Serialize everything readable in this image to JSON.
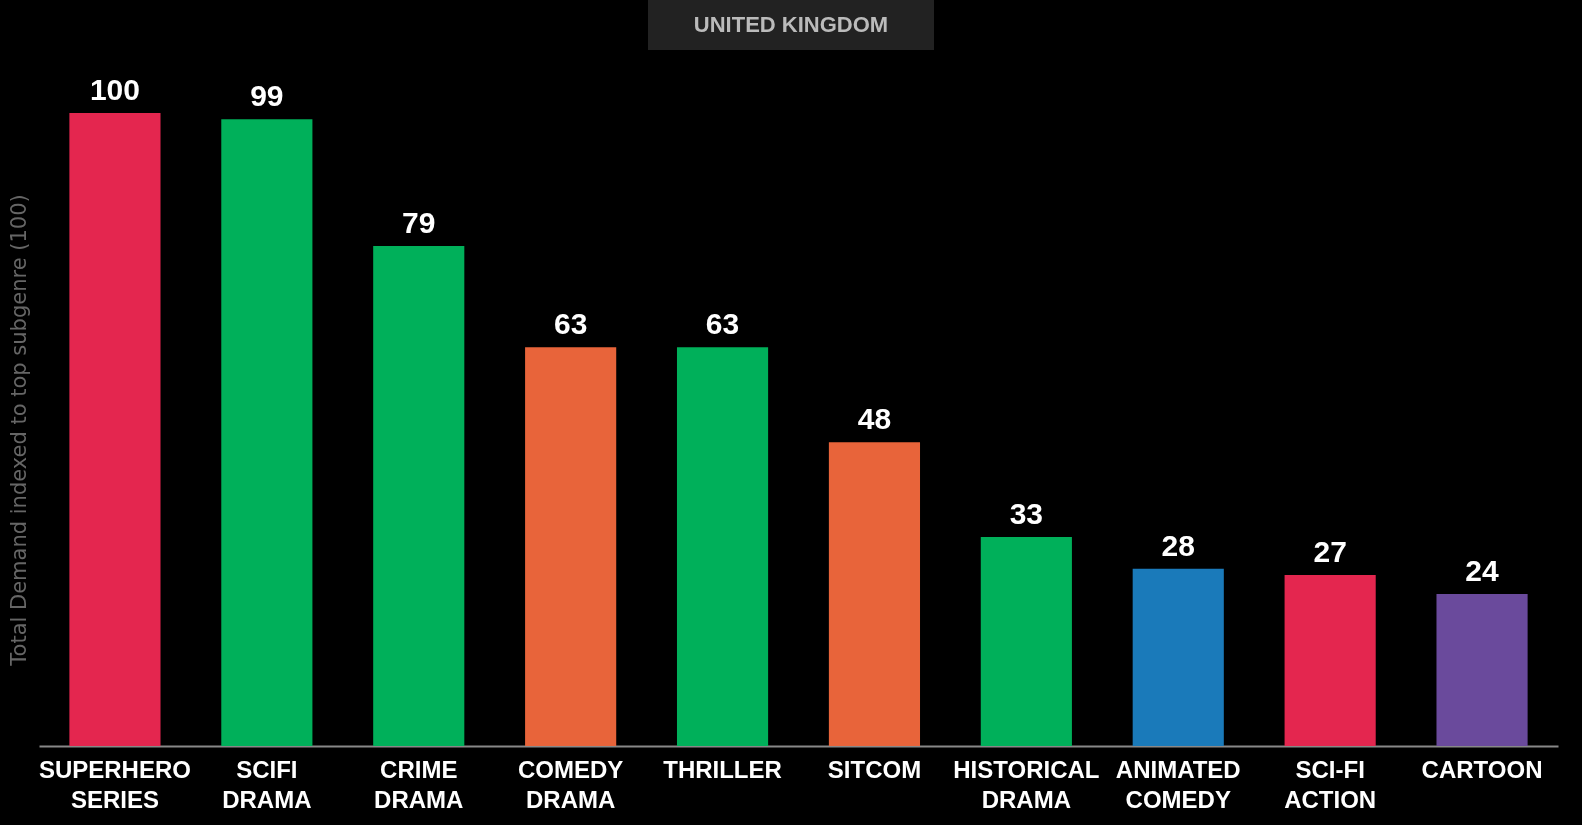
{
  "chart_data": {
    "type": "bar",
    "title": "UNITED KINGDOM",
    "ylabel": "Total Demand indexed to top subgenre (100)",
    "categories": [
      "SUPERHERO SERIES",
      "SCIFI DRAMA",
      "CRIME DRAMA",
      "COMEDY DRAMA",
      "THRILLER",
      "SITCOM",
      "HISTORICAL DRAMA",
      "ANIMATED COMEDY",
      "SCI-FI ACTION",
      "CARTOON"
    ],
    "values": [
      100,
      99,
      79,
      63,
      63,
      48,
      33,
      28,
      27,
      24
    ],
    "colors": [
      "#e4264f",
      "#00b05a",
      "#00b05a",
      "#e8643a",
      "#00b05a",
      "#e8643a",
      "#00b05a",
      "#1a7aba",
      "#e4264f",
      "#6a4a9c"
    ],
    "data_labels": true,
    "grid": false
  }
}
